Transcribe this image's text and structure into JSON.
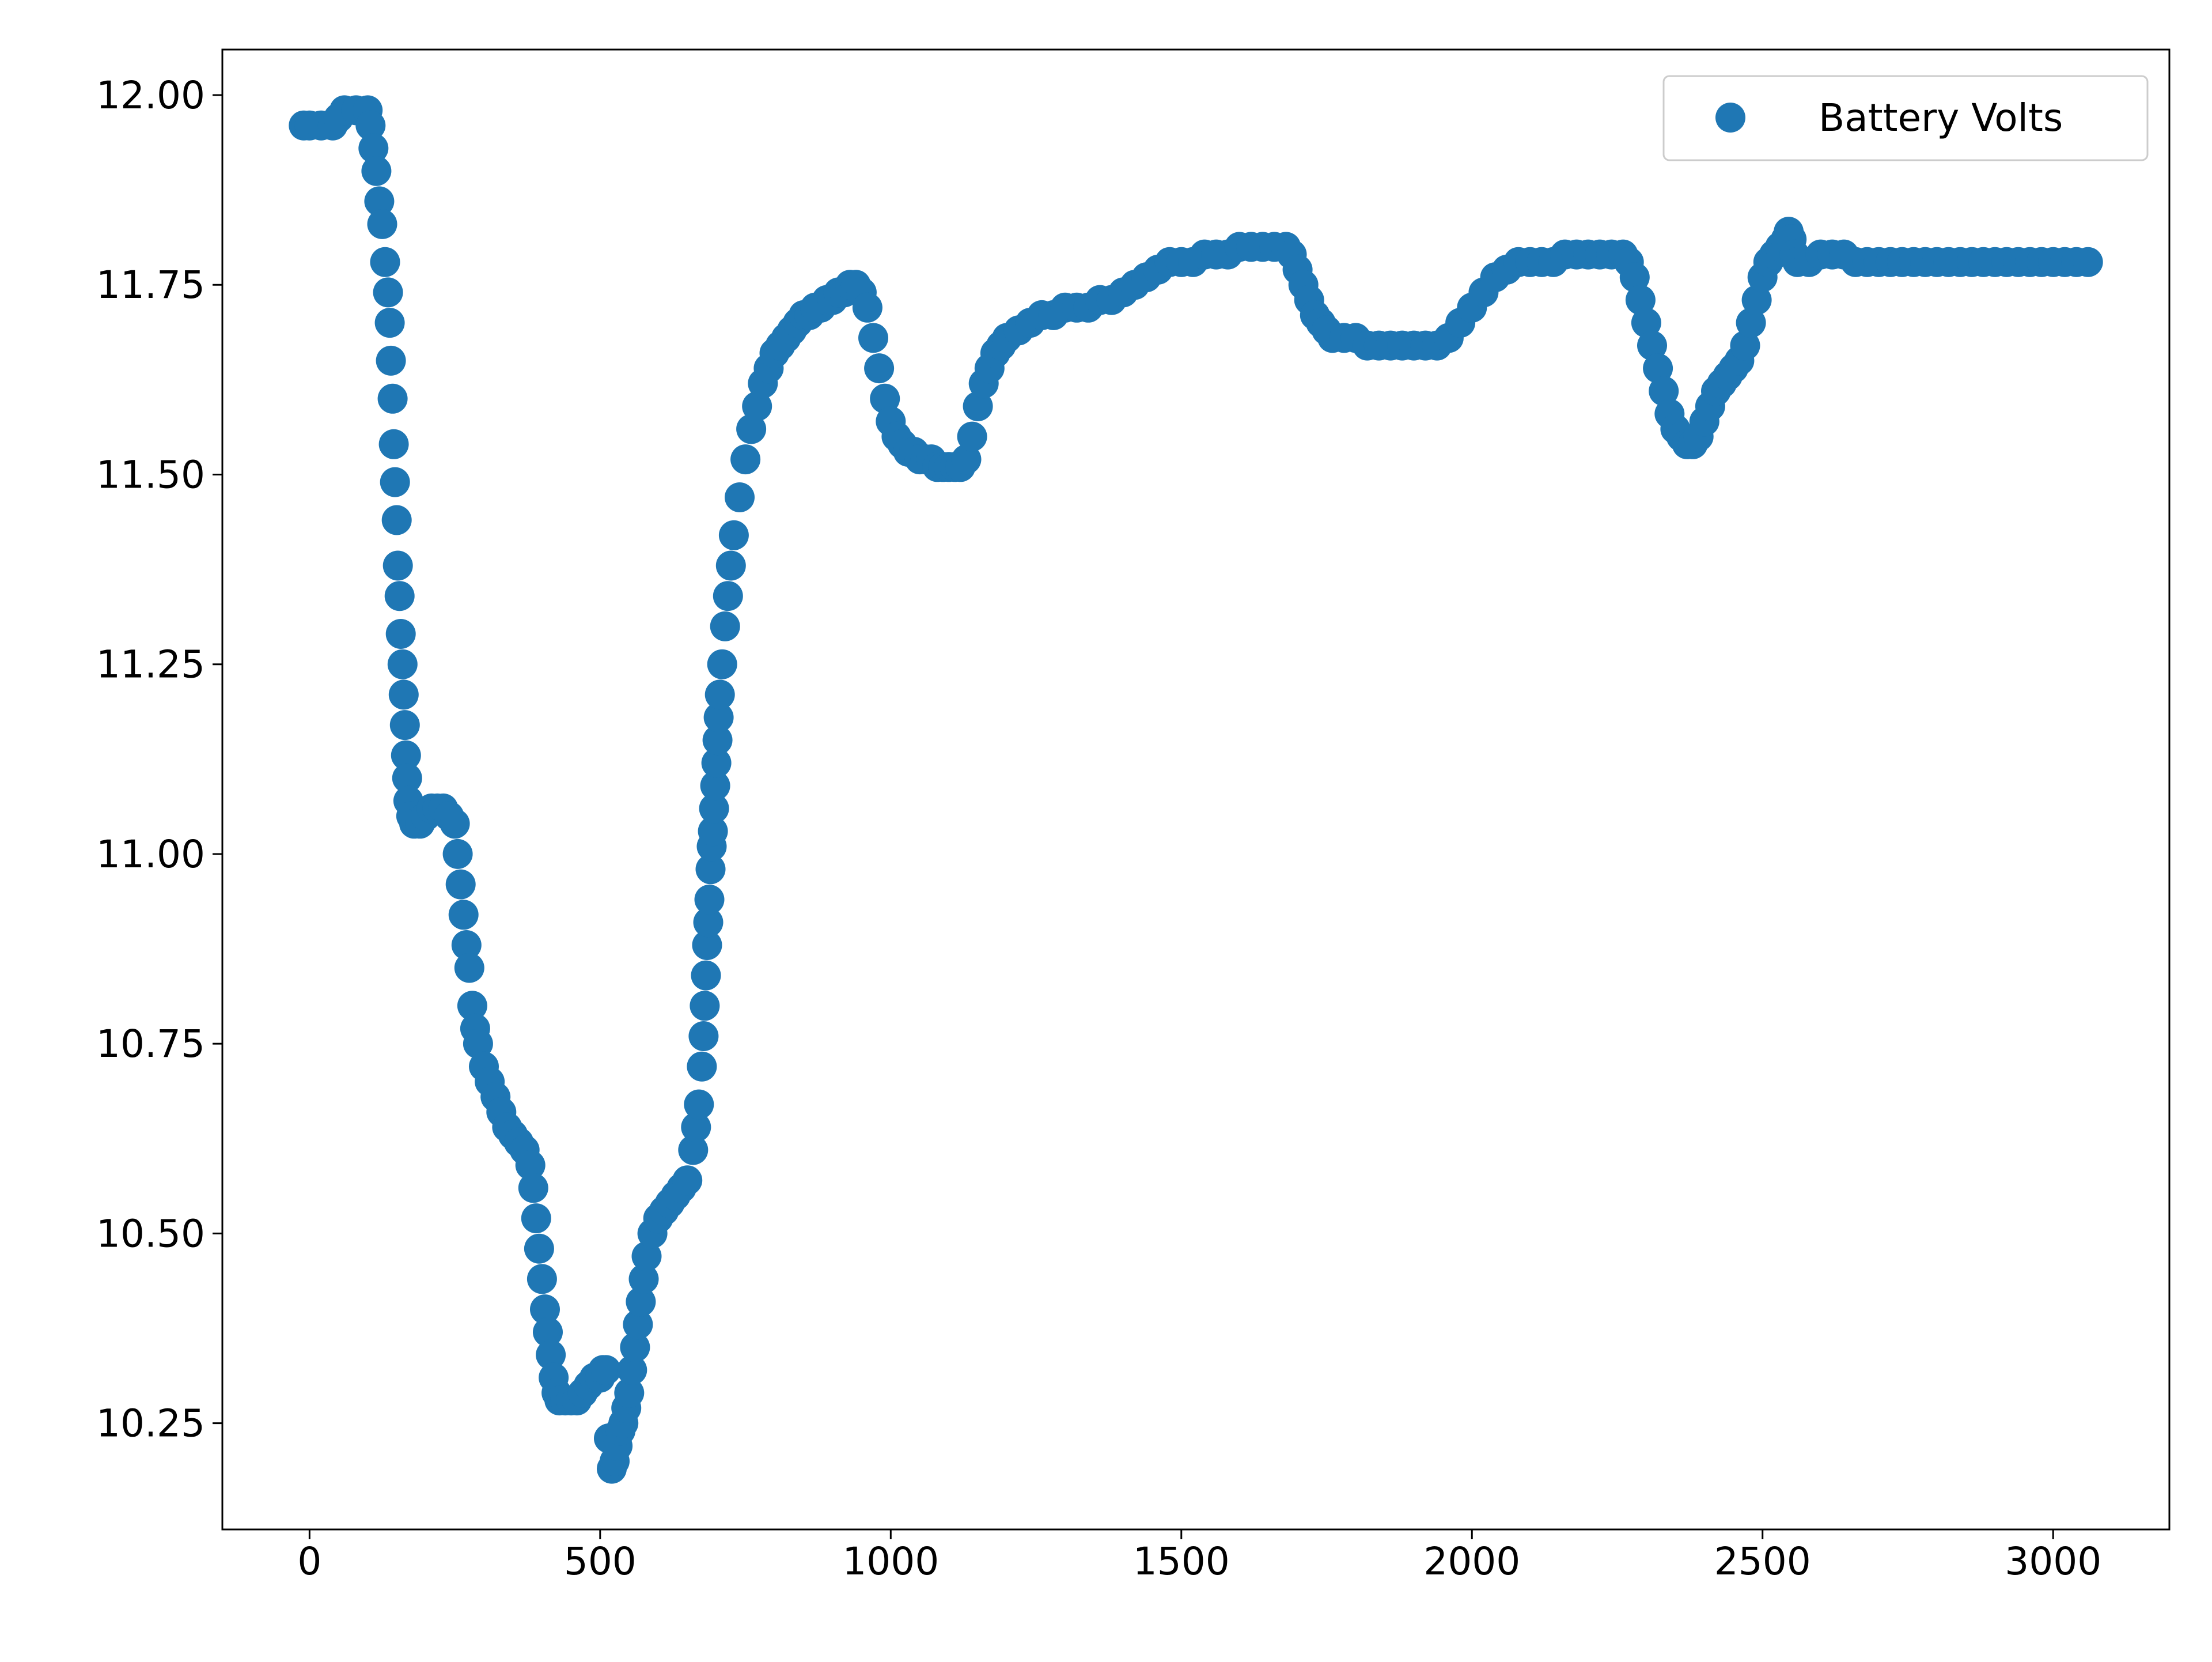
{
  "chart_data": {
    "type": "scatter",
    "title": "",
    "xlabel": "",
    "ylabel": "",
    "xlim": [
      -150,
      3200
    ],
    "ylim": [
      10.11,
      12.06
    ],
    "x_ticks": [
      0,
      500,
      1000,
      1500,
      2000,
      2500,
      3000
    ],
    "x_tick_labels": [
      "0",
      "500",
      "1000",
      "1500",
      "2000",
      "2500",
      "3000"
    ],
    "y_ticks": [
      10.25,
      10.5,
      10.75,
      11.0,
      11.25,
      11.5,
      11.75,
      12.0
    ],
    "y_tick_labels": [
      "10.25",
      "10.50",
      "10.75",
      "11.00",
      "11.25",
      "11.50",
      "11.75",
      "12.00"
    ],
    "grid": false,
    "legend_position": "top-right",
    "colors": {
      "series": "#1f77b4",
      "axes": "#000000",
      "background": "#ffffff"
    },
    "series": [
      {
        "name": "Battery Volts",
        "marker": "circle",
        "points": [
          [
            -10,
            11.96
          ],
          [
            0,
            11.96
          ],
          [
            20,
            11.96
          ],
          [
            40,
            11.96
          ],
          [
            50,
            11.97
          ],
          [
            60,
            11.98
          ],
          [
            80,
            11.98
          ],
          [
            100,
            11.98
          ],
          [
            105,
            11.96
          ],
          [
            110,
            11.93
          ],
          [
            115,
            11.9
          ],
          [
            120,
            11.86
          ],
          [
            125,
            11.83
          ],
          [
            130,
            11.78
          ],
          [
            135,
            11.74
          ],
          [
            138,
            11.7
          ],
          [
            140,
            11.65
          ],
          [
            143,
            11.6
          ],
          [
            145,
            11.54
          ],
          [
            147,
            11.49
          ],
          [
            150,
            11.44
          ],
          [
            152,
            11.38
          ],
          [
            155,
            11.34
          ],
          [
            157,
            11.29
          ],
          [
            160,
            11.25
          ],
          [
            162,
            11.21
          ],
          [
            164,
            11.17
          ],
          [
            166,
            11.13
          ],
          [
            168,
            11.1
          ],
          [
            170,
            11.07
          ],
          [
            175,
            11.05
          ],
          [
            180,
            11.04
          ],
          [
            190,
            11.04
          ],
          [
            200,
            11.05
          ],
          [
            210,
            11.06
          ],
          [
            220,
            11.06
          ],
          [
            230,
            11.06
          ],
          [
            240,
            11.05
          ],
          [
            250,
            11.04
          ],
          [
            255,
            11.0
          ],
          [
            260,
            10.96
          ],
          [
            265,
            10.92
          ],
          [
            270,
            10.88
          ],
          [
            275,
            10.85
          ],
          [
            280,
            10.8
          ],
          [
            285,
            10.77
          ],
          [
            290,
            10.75
          ],
          [
            300,
            10.72
          ],
          [
            310,
            10.7
          ],
          [
            320,
            10.68
          ],
          [
            330,
            10.66
          ],
          [
            340,
            10.64
          ],
          [
            350,
            10.63
          ],
          [
            360,
            10.62
          ],
          [
            370,
            10.61
          ],
          [
            380,
            10.59
          ],
          [
            385,
            10.56
          ],
          [
            390,
            10.52
          ],
          [
            395,
            10.48
          ],
          [
            400,
            10.44
          ],
          [
            405,
            10.4
          ],
          [
            410,
            10.37
          ],
          [
            415,
            10.34
          ],
          [
            420,
            10.31
          ],
          [
            425,
            10.29
          ],
          [
            430,
            10.28
          ],
          [
            440,
            10.28
          ],
          [
            450,
            10.28
          ],
          [
            460,
            10.28
          ],
          [
            470,
            10.29
          ],
          [
            480,
            10.3
          ],
          [
            490,
            10.31
          ],
          [
            500,
            10.31
          ],
          [
            505,
            10.32
          ],
          [
            510,
            10.32
          ],
          [
            515,
            10.23
          ],
          [
            520,
            10.19
          ],
          [
            525,
            10.2
          ],
          [
            530,
            10.22
          ],
          [
            535,
            10.24
          ],
          [
            540,
            10.25
          ],
          [
            545,
            10.27
          ],
          [
            550,
            10.29
          ],
          [
            555,
            10.32
          ],
          [
            560,
            10.35
          ],
          [
            565,
            10.38
          ],
          [
            570,
            10.41
          ],
          [
            575,
            10.44
          ],
          [
            580,
            10.47
          ],
          [
            590,
            10.5
          ],
          [
            600,
            10.52
          ],
          [
            610,
            10.53
          ],
          [
            620,
            10.54
          ],
          [
            630,
            10.55
          ],
          [
            640,
            10.56
          ],
          [
            650,
            10.57
          ],
          [
            660,
            10.61
          ],
          [
            665,
            10.64
          ],
          [
            670,
            10.67
          ],
          [
            675,
            10.72
          ],
          [
            678,
            10.76
          ],
          [
            680,
            10.8
          ],
          [
            682,
            10.84
          ],
          [
            684,
            10.88
          ],
          [
            686,
            10.91
          ],
          [
            688,
            10.94
          ],
          [
            690,
            10.98
          ],
          [
            692,
            11.01
          ],
          [
            694,
            11.03
          ],
          [
            696,
            11.06
          ],
          [
            698,
            11.09
          ],
          [
            700,
            11.12
          ],
          [
            702,
            11.15
          ],
          [
            704,
            11.18
          ],
          [
            706,
            11.21
          ],
          [
            710,
            11.25
          ],
          [
            715,
            11.3
          ],
          [
            720,
            11.34
          ],
          [
            725,
            11.38
          ],
          [
            730,
            11.42
          ],
          [
            740,
            11.47
          ],
          [
            750,
            11.52
          ],
          [
            760,
            11.56
          ],
          [
            770,
            11.59
          ],
          [
            780,
            11.62
          ],
          [
            790,
            11.64
          ],
          [
            800,
            11.66
          ],
          [
            810,
            11.67
          ],
          [
            820,
            11.68
          ],
          [
            830,
            11.69
          ],
          [
            840,
            11.7
          ],
          [
            850,
            11.71
          ],
          [
            860,
            11.71
          ],
          [
            870,
            11.72
          ],
          [
            880,
            11.72
          ],
          [
            890,
            11.73
          ],
          [
            900,
            11.73
          ],
          [
            910,
            11.74
          ],
          [
            920,
            11.74
          ],
          [
            930,
            11.75
          ],
          [
            940,
            11.75
          ],
          [
            950,
            11.74
          ],
          [
            960,
            11.72
          ],
          [
            970,
            11.68
          ],
          [
            980,
            11.64
          ],
          [
            990,
            11.6
          ],
          [
            1000,
            11.57
          ],
          [
            1010,
            11.55
          ],
          [
            1020,
            11.54
          ],
          [
            1030,
            11.53
          ],
          [
            1040,
            11.53
          ],
          [
            1050,
            11.52
          ],
          [
            1060,
            11.52
          ],
          [
            1070,
            11.52
          ],
          [
            1080,
            11.51
          ],
          [
            1090,
            11.51
          ],
          [
            1100,
            11.51
          ],
          [
            1110,
            11.51
          ],
          [
            1120,
            11.51
          ],
          [
            1130,
            11.52
          ],
          [
            1140,
            11.55
          ],
          [
            1150,
            11.59
          ],
          [
            1160,
            11.62
          ],
          [
            1170,
            11.64
          ],
          [
            1180,
            11.66
          ],
          [
            1190,
            11.67
          ],
          [
            1200,
            11.68
          ],
          [
            1220,
            11.69
          ],
          [
            1240,
            11.7
          ],
          [
            1260,
            11.71
          ],
          [
            1280,
            11.71
          ],
          [
            1300,
            11.72
          ],
          [
            1320,
            11.72
          ],
          [
            1340,
            11.72
          ],
          [
            1360,
            11.73
          ],
          [
            1380,
            11.73
          ],
          [
            1400,
            11.74
          ],
          [
            1420,
            11.75
          ],
          [
            1440,
            11.76
          ],
          [
            1460,
            11.77
          ],
          [
            1480,
            11.78
          ],
          [
            1500,
            11.78
          ],
          [
            1520,
            11.78
          ],
          [
            1540,
            11.79
          ],
          [
            1560,
            11.79
          ],
          [
            1580,
            11.79
          ],
          [
            1600,
            11.8
          ],
          [
            1620,
            11.8
          ],
          [
            1640,
            11.8
          ],
          [
            1660,
            11.8
          ],
          [
            1680,
            11.8
          ],
          [
            1690,
            11.79
          ],
          [
            1700,
            11.77
          ],
          [
            1710,
            11.75
          ],
          [
            1720,
            11.73
          ],
          [
            1730,
            11.71
          ],
          [
            1740,
            11.7
          ],
          [
            1750,
            11.69
          ],
          [
            1760,
            11.68
          ],
          [
            1780,
            11.68
          ],
          [
            1800,
            11.68
          ],
          [
            1820,
            11.67
          ],
          [
            1840,
            11.67
          ],
          [
            1860,
            11.67
          ],
          [
            1880,
            11.67
          ],
          [
            1900,
            11.67
          ],
          [
            1920,
            11.67
          ],
          [
            1940,
            11.67
          ],
          [
            1960,
            11.68
          ],
          [
            1980,
            11.7
          ],
          [
            2000,
            11.72
          ],
          [
            2020,
            11.74
          ],
          [
            2040,
            11.76
          ],
          [
            2060,
            11.77
          ],
          [
            2080,
            11.78
          ],
          [
            2100,
            11.78
          ],
          [
            2120,
            11.78
          ],
          [
            2140,
            11.78
          ],
          [
            2160,
            11.79
          ],
          [
            2180,
            11.79
          ],
          [
            2200,
            11.79
          ],
          [
            2220,
            11.79
          ],
          [
            2240,
            11.79
          ],
          [
            2260,
            11.79
          ],
          [
            2270,
            11.78
          ],
          [
            2280,
            11.76
          ],
          [
            2290,
            11.73
          ],
          [
            2300,
            11.7
          ],
          [
            2310,
            11.67
          ],
          [
            2320,
            11.64
          ],
          [
            2330,
            11.61
          ],
          [
            2340,
            11.58
          ],
          [
            2350,
            11.56
          ],
          [
            2360,
            11.55
          ],
          [
            2370,
            11.54
          ],
          [
            2380,
            11.54
          ],
          [
            2390,
            11.55
          ],
          [
            2400,
            11.57
          ],
          [
            2410,
            11.59
          ],
          [
            2420,
            11.61
          ],
          [
            2430,
            11.62
          ],
          [
            2440,
            11.63
          ],
          [
            2450,
            11.64
          ],
          [
            2460,
            11.65
          ],
          [
            2470,
            11.67
          ],
          [
            2480,
            11.7
          ],
          [
            2490,
            11.73
          ],
          [
            2500,
            11.76
          ],
          [
            2510,
            11.78
          ],
          [
            2520,
            11.79
          ],
          [
            2530,
            11.8
          ],
          [
            2540,
            11.81
          ],
          [
            2545,
            11.82
          ],
          [
            2550,
            11.81
          ],
          [
            2555,
            11.79
          ],
          [
            2560,
            11.78
          ],
          [
            2580,
            11.78
          ],
          [
            2600,
            11.79
          ],
          [
            2620,
            11.79
          ],
          [
            2640,
            11.79
          ],
          [
            2660,
            11.78
          ],
          [
            2680,
            11.78
          ],
          [
            2700,
            11.78
          ],
          [
            2720,
            11.78
          ],
          [
            2740,
            11.78
          ],
          [
            2760,
            11.78
          ],
          [
            2780,
            11.78
          ],
          [
            2800,
            11.78
          ],
          [
            2820,
            11.78
          ],
          [
            2840,
            11.78
          ],
          [
            2860,
            11.78
          ],
          [
            2880,
            11.78
          ],
          [
            2900,
            11.78
          ],
          [
            2920,
            11.78
          ],
          [
            2940,
            11.78
          ],
          [
            2960,
            11.78
          ],
          [
            2980,
            11.78
          ],
          [
            3000,
            11.78
          ],
          [
            3020,
            11.78
          ],
          [
            3040,
            11.78
          ],
          [
            3060,
            11.78
          ]
        ]
      }
    ]
  }
}
